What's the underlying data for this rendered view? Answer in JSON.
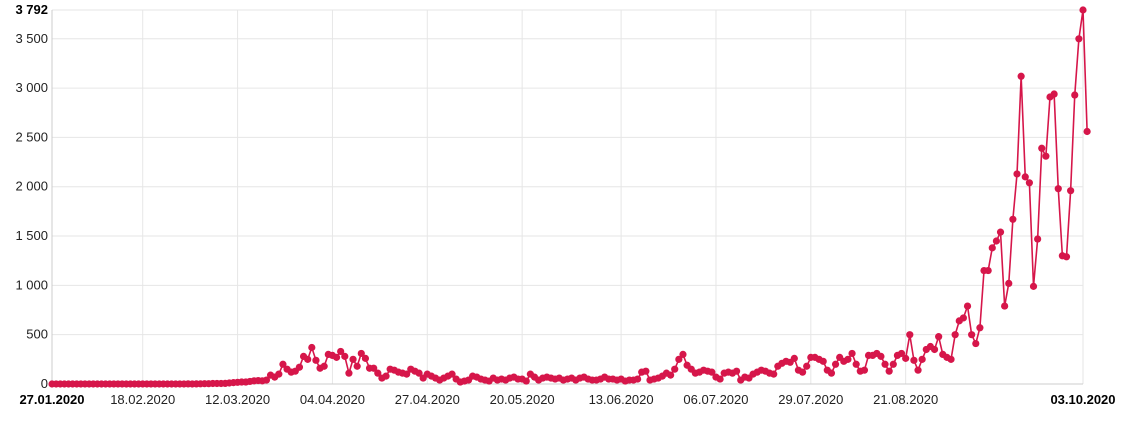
{
  "chart_data": {
    "type": "line",
    "title": "",
    "xlabel": "",
    "ylabel": "",
    "x_range": [
      "27.01.2020",
      "03.10.2020"
    ],
    "ylim": [
      0,
      3792
    ],
    "grid": true,
    "legend": "none",
    "colors": {
      "series": "#d6164a",
      "grid": "#e6e6e6",
      "axis": "#cccccc"
    },
    "y_ticks": [
      {
        "value": 500,
        "label": "500",
        "bold": false
      },
      {
        "value": 1000,
        "label": "1 000",
        "bold": false
      },
      {
        "value": 1500,
        "label": "1 500",
        "bold": false
      },
      {
        "value": 2000,
        "label": "2 000",
        "bold": false
      },
      {
        "value": 2500,
        "label": "2 500",
        "bold": false
      },
      {
        "value": 3000,
        "label": "3 000",
        "bold": false
      },
      {
        "value": 3500,
        "label": "3 500",
        "bold": false
      },
      {
        "value": 3792,
        "label": "3 792",
        "bold": true
      },
      {
        "value": 0,
        "label": "0",
        "bold": false
      }
    ],
    "x_ticks": [
      {
        "date": "27.01.2020",
        "label": "27.01.2020",
        "bold": true
      },
      {
        "date": "18.02.2020",
        "label": "18.02.2020",
        "bold": false
      },
      {
        "date": "12.03.2020",
        "label": "12.03.2020",
        "bold": false
      },
      {
        "date": "04.04.2020",
        "label": "04.04.2020",
        "bold": false
      },
      {
        "date": "27.04.2020",
        "label": "27.04.2020",
        "bold": false
      },
      {
        "date": "20.05.2020",
        "label": "20.05.2020",
        "bold": false
      },
      {
        "date": "13.06.2020",
        "label": "13.06.2020",
        "bold": false
      },
      {
        "date": "06.07.2020",
        "label": "06.07.2020",
        "bold": false
      },
      {
        "date": "29.07.2020",
        "label": "29.07.2020",
        "bold": false
      },
      {
        "date": "21.08.2020",
        "label": "21.08.2020",
        "bold": false
      },
      {
        "date": "03.10.2020",
        "label": "03.10.2020",
        "bold": true
      }
    ],
    "series": [
      {
        "start_date": "27.01.2020",
        "values": [
          0,
          0,
          0,
          0,
          0,
          0,
          0,
          0,
          0,
          0,
          0,
          0,
          0,
          0,
          0,
          0,
          0,
          0,
          0,
          0,
          0,
          0,
          0,
          0,
          0,
          0,
          0,
          0,
          0,
          0,
          0,
          0,
          0,
          1,
          0,
          1,
          2,
          3,
          3,
          5,
          5,
          5,
          6,
          10,
          14,
          17,
          20,
          20,
          26,
          32,
          35,
          32,
          40,
          90,
          70,
          100,
          200,
          150,
          120,
          130,
          170,
          280,
          250,
          370,
          240,
          160,
          180,
          300,
          290,
          270,
          330,
          280,
          110,
          250,
          180,
          310,
          260,
          160,
          160,
          110,
          60,
          80,
          150,
          140,
          120,
          110,
          100,
          150,
          130,
          110,
          60,
          100,
          80,
          60,
          40,
          60,
          80,
          100,
          50,
          20,
          30,
          40,
          80,
          70,
          50,
          40,
          30,
          60,
          40,
          50,
          40,
          60,
          70,
          50,
          50,
          30,
          100,
          70,
          40,
          60,
          70,
          60,
          50,
          60,
          40,
          50,
          60,
          40,
          60,
          70,
          50,
          40,
          40,
          50,
          70,
          50,
          50,
          40,
          50,
          30,
          40,
          40,
          50,
          120,
          130,
          40,
          50,
          60,
          80,
          110,
          90,
          150,
          250,
          300,
          190,
          150,
          110,
          120,
          140,
          130,
          120,
          70,
          50,
          110,
          120,
          110,
          130,
          40,
          70,
          60,
          100,
          120,
          140,
          130,
          110,
          100,
          180,
          210,
          230,
          220,
          260,
          140,
          120,
          180,
          270,
          270,
          250,
          230,
          140,
          110,
          200,
          270,
          230,
          250,
          310,
          200,
          130,
          140,
          290,
          290,
          310,
          280,
          200,
          130,
          200,
          290,
          310,
          260,
          500,
          240,
          140,
          250,
          350,
          380,
          350,
          480,
          300,
          270,
          250,
          500,
          640,
          670,
          790,
          500,
          410,
          570,
          1150,
          1150,
          1380,
          1450,
          1540,
          790,
          1020,
          1670,
          2130,
          3120,
          2100,
          2040,
          990,
          1470,
          2390,
          2310,
          2910,
          2940,
          1980,
          1300,
          1290,
          1960,
          2930,
          3500,
          3792,
          2560
        ]
      }
    ]
  }
}
